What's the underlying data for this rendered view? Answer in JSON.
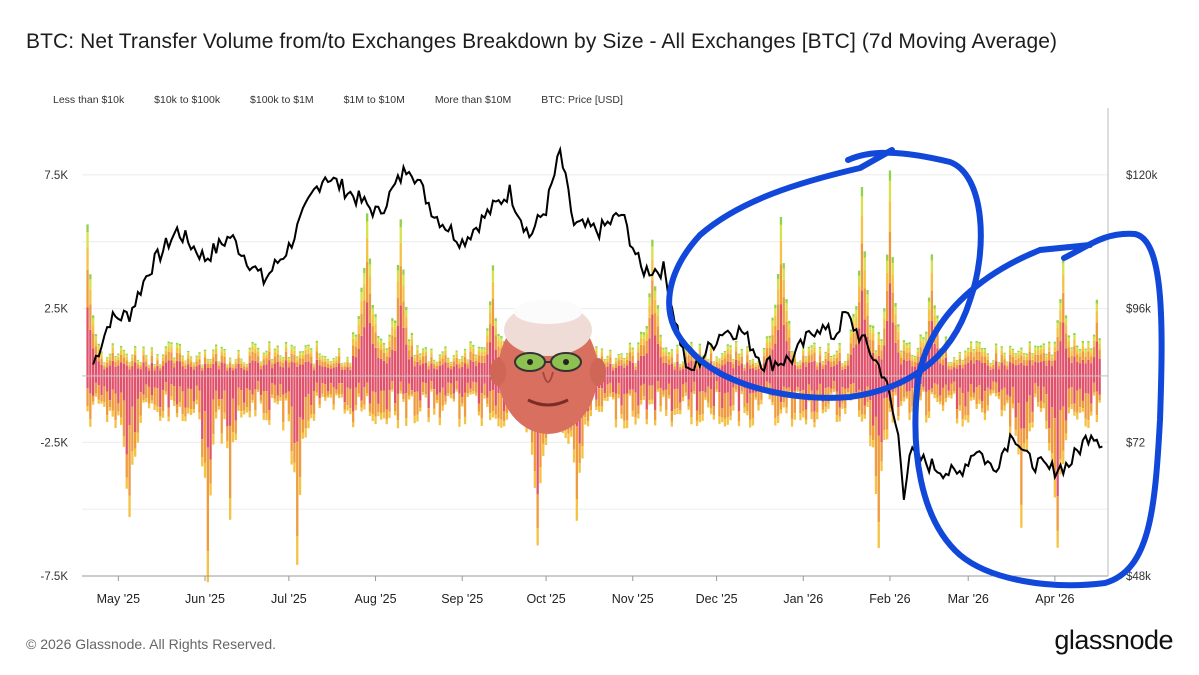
{
  "chart_data": {
    "type": "bar",
    "title": "BTC: Net Transfer Volume from/to Exchanges Breakdown by Size - All Exchanges [BTC] (7d Moving Average)",
    "legend": [
      "Less than $10k",
      "$10k to $100k",
      "$100k to $1M",
      "$1M to $10M",
      "More than $10M",
      "BTC: Price [USD]"
    ],
    "series_colors": {
      "Less than $10k": "#8fd24c",
      "$10k to $100k": "#d6e24a",
      "$100k to $1M": "#f6c243",
      "$1M to $10M": "#ef9a3c",
      "More than $10M": "#e0526b",
      "BTC: Price [USD]": "#000000"
    },
    "y_left": {
      "ticks": [
        "7.5K",
        "2.5K",
        "-2.5K",
        "-7.5K"
      ],
      "range": [
        -7500,
        10000
      ]
    },
    "y_right": {
      "ticks": [
        "$120k",
        "$96k",
        "$72",
        "$48k"
      ],
      "range": [
        48000,
        132000
      ]
    },
    "x_labels": [
      "May '25",
      "Jun '25",
      "Jul '25",
      "Aug '25",
      "Sep '25",
      "Oct '25",
      "Nov '25",
      "Dec '25",
      "Jan '26",
      "Feb '26",
      "Mar '26",
      "Apr '26"
    ],
    "price_anchors": [
      [
        "2025-04-22",
        86000
      ],
      [
        "2025-04-28",
        94000
      ],
      [
        "2025-05-05",
        95000
      ],
      [
        "2025-05-12",
        103000
      ],
      [
        "2025-05-22",
        110000
      ],
      [
        "2025-06-01",
        105000
      ],
      [
        "2025-06-10",
        109000
      ],
      [
        "2025-06-22",
        101000
      ],
      [
        "2025-07-01",
        107000
      ],
      [
        "2025-07-10",
        117000
      ],
      [
        "2025-07-14",
        120000
      ],
      [
        "2025-08-02",
        113000
      ],
      [
        "2025-08-13",
        122000
      ],
      [
        "2025-08-22",
        113000
      ],
      [
        "2025-09-01",
        108000
      ],
      [
        "2025-09-10",
        113000
      ],
      [
        "2025-09-18",
        117000
      ],
      [
        "2025-09-25",
        109000
      ],
      [
        "2025-10-01",
        114000
      ],
      [
        "2025-10-06",
        124000
      ],
      [
        "2025-10-11",
        111000
      ],
      [
        "2025-10-20",
        110000
      ],
      [
        "2025-10-28",
        113000
      ],
      [
        "2025-11-04",
        103000
      ],
      [
        "2025-11-12",
        103000
      ],
      [
        "2025-11-21",
        84000
      ],
      [
        "2025-12-03",
        92000
      ],
      [
        "2025-12-10",
        92000
      ],
      [
        "2025-12-18",
        86000
      ],
      [
        "2025-12-28",
        87000
      ],
      [
        "2026-01-06",
        93000
      ],
      [
        "2026-01-12",
        91000
      ],
      [
        "2026-01-16",
        95000
      ],
      [
        "2026-01-24",
        89000
      ],
      [
        "2026-01-30",
        84000
      ],
      [
        "2026-02-04",
        73000
      ],
      [
        "2026-02-06",
        63000
      ],
      [
        "2026-02-08",
        70000
      ],
      [
        "2026-02-15",
        68000
      ],
      [
        "2026-02-25",
        66000
      ],
      [
        "2026-03-04",
        71000
      ],
      [
        "2026-03-10",
        67000
      ],
      [
        "2026-03-17",
        74000
      ],
      [
        "2026-03-22",
        69000
      ],
      [
        "2026-03-30",
        67000
      ],
      [
        "2026-04-06",
        68000
      ],
      [
        "2026-04-14",
        74000
      ],
      [
        "2026-04-18",
        72000
      ]
    ]
  },
  "annotations": [
    "blue-circle-dec-jan",
    "blue-circle-feb-apr",
    "face-sticker"
  ],
  "footer": "© 2026 Glassnode. All Rights Reserved.",
  "logo": "glassnode"
}
